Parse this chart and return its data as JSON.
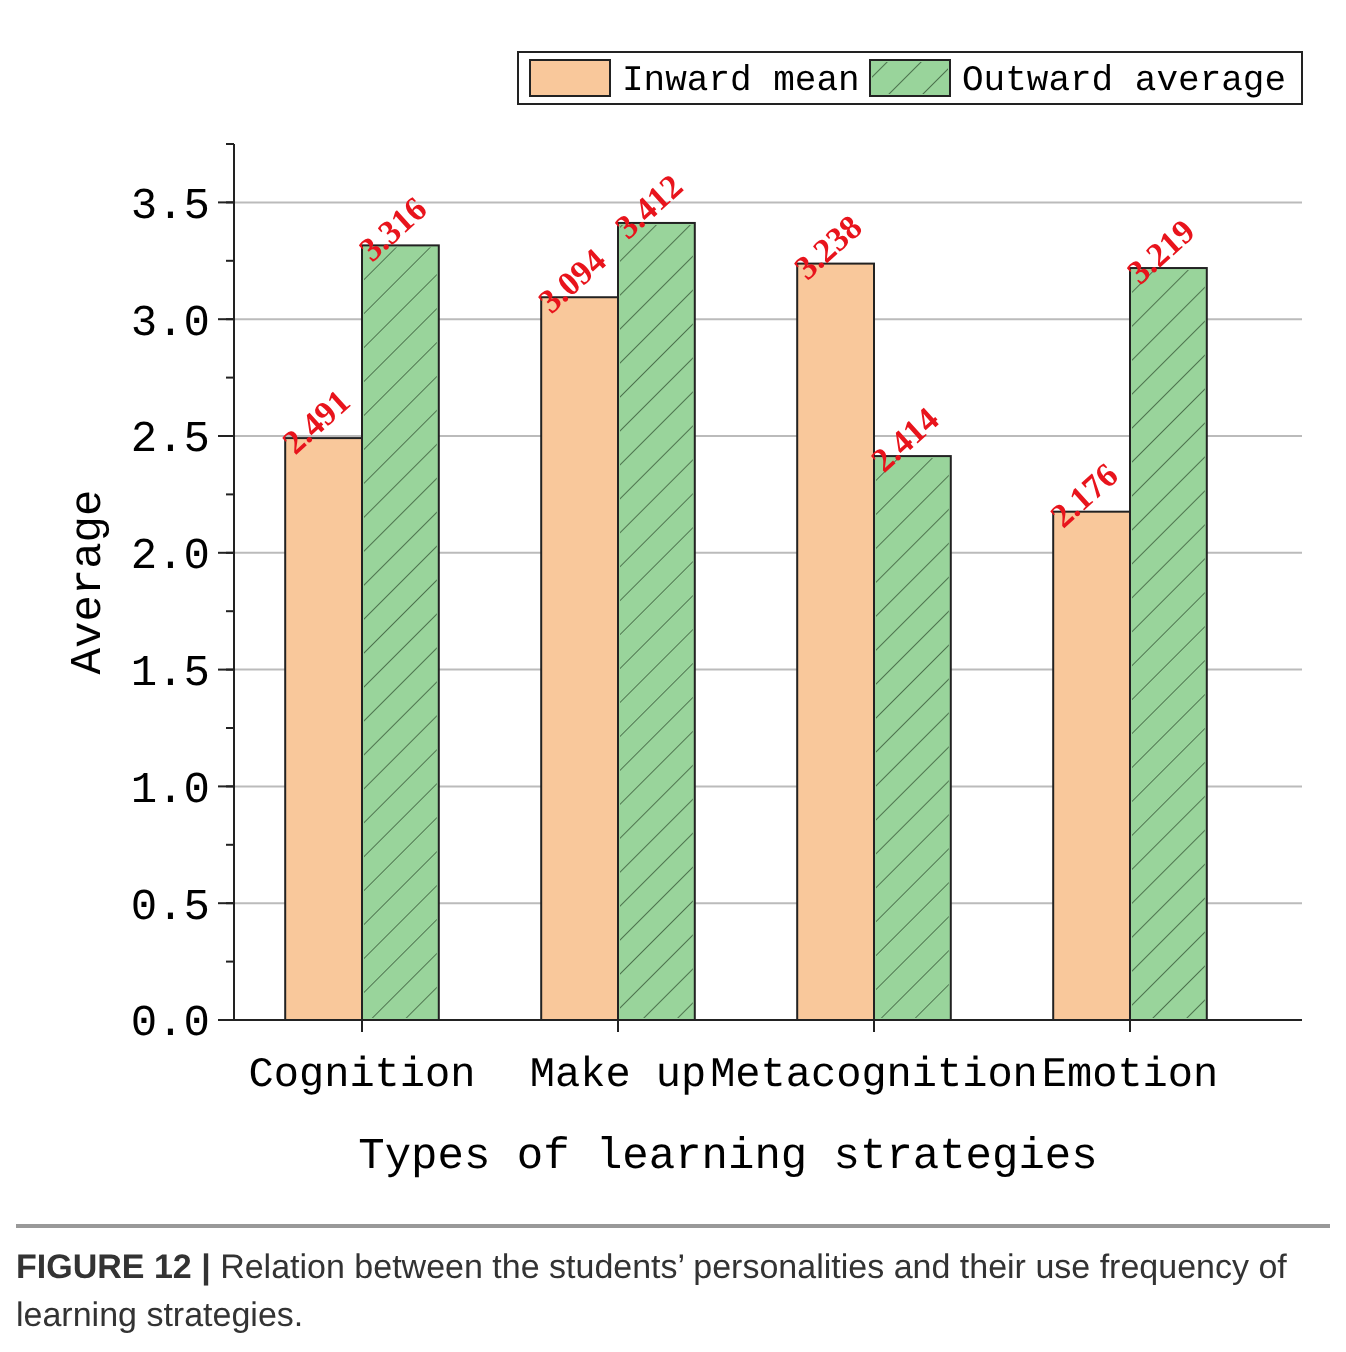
{
  "chart_data": {
    "type": "bar",
    "xlabel": "Types of learning strategies",
    "ylabel": "Average",
    "categories": [
      "Cognition",
      "Make up",
      "Metacognition",
      "Emotion"
    ],
    "series": [
      {
        "name": "Inward mean",
        "color": "#f9c89b",
        "values": [
          2.491,
          3.094,
          3.238,
          2.176
        ]
      },
      {
        "name": "Outward average",
        "color": "#99d49b",
        "values": [
          3.316,
          3.412,
          2.414,
          3.219
        ]
      }
    ],
    "ylim": [
      0,
      3.75
    ],
    "yticks": [
      "0.0",
      "0.5",
      "1.0",
      "1.5",
      "2.0",
      "2.5",
      "3.0",
      "3.5"
    ],
    "grid": "y",
    "legend": "top right",
    "data_labels": true,
    "annotations": [
      "FIGURE 12 | Relation between the students’ personalities and their use frequency of learning strategies."
    ]
  }
}
